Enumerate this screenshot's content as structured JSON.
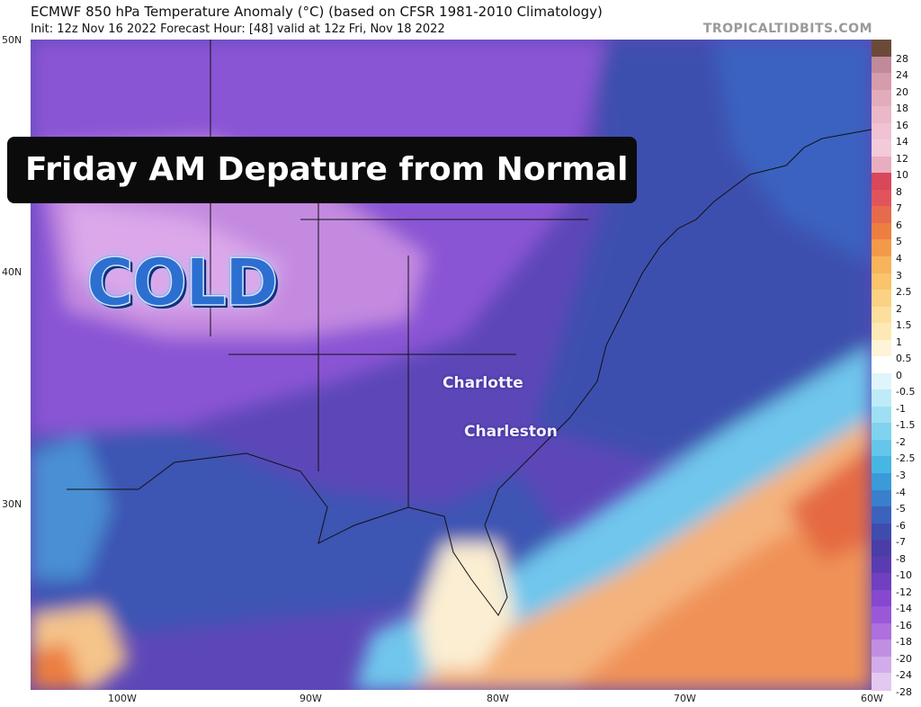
{
  "header": {
    "title": "ECMWF 850 hPa Temperature Anomaly (°C) (based on CFSR 1981-2010 Climatology)",
    "subtitle": "Init: 12z Nov 16 2022   Forecast Hour: [48]   valid at 12z Fri, Nov 18 2022",
    "brand": "TROPICALTIDBITS.COM"
  },
  "banner": {
    "text": "Friday AM Depature from Normal"
  },
  "overlay": {
    "cold_label": "COLD"
  },
  "cities": [
    {
      "name": "Charlotte"
    },
    {
      "name": "Charleston"
    }
  ],
  "axes": {
    "lat_labels": [
      "50N",
      "40N",
      "30N"
    ],
    "lon_labels": [
      "100W",
      "90W",
      "80W",
      "70W",
      "60W"
    ]
  },
  "colorbar": {
    "labels": [
      "28",
      "24",
      "20",
      "18",
      "16",
      "14",
      "12",
      "10",
      "8",
      "7",
      "6",
      "5",
      "4",
      "3",
      "2.5",
      "2",
      "1.5",
      "1",
      "0.5",
      "0",
      "-0.5",
      "-1",
      "-1.5",
      "-2",
      "-2.5",
      "-3",
      "-4",
      "-5",
      "-6",
      "-7",
      "-8",
      "-10",
      "-12",
      "-14",
      "-16",
      "-18",
      "-20",
      "-24",
      "-28"
    ],
    "colors": [
      "#6b4a3a",
      "#c18a9a",
      "#d79cab",
      "#e2acbb",
      "#eab8c8",
      "#f0c2d3",
      "#f3cad9",
      "#e8aec0",
      "#d9475a",
      "#e0545a",
      "#e66a4c",
      "#ec7e3f",
      "#f29a4a",
      "#f7b45a",
      "#f9c46c",
      "#fbd283",
      "#fcdf9c",
      "#fde9b6",
      "#fef4d8",
      "#ffffff",
      "#dff5fb",
      "#bfeaf7",
      "#9fdff3",
      "#80d3ef",
      "#63c6ea",
      "#48b6e3",
      "#3a9bd8",
      "#3a7fcc",
      "#3b63bd",
      "#3f4cae",
      "#4a3ea6",
      "#5a3cb0",
      "#7040c0",
      "#8648cf",
      "#9a58d8",
      "#ad70de",
      "#c08fe2",
      "#d2acea",
      "#e3c9f2"
    ]
  }
}
